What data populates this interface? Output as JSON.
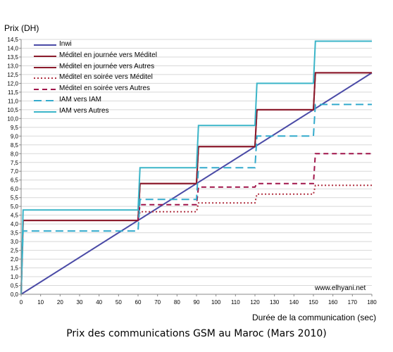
{
  "chart_data": {
    "type": "line",
    "title": "Prix des communications GSM au Maroc (Mars 2010)",
    "ylabel": "Prix (DH)",
    "xlabel": "Durée de la communication (sec)",
    "watermark": "www.elhyani.net",
    "xlim": [
      0,
      180
    ],
    "ylim": [
      0,
      14.5
    ],
    "x_ticks": [
      "0",
      "10",
      "20",
      "30",
      "40",
      "50",
      "60",
      "70",
      "80",
      "90",
      "100",
      "110",
      "120",
      "130",
      "140",
      "150",
      "160",
      "170",
      "180"
    ],
    "y_ticks": [
      "0,0",
      "0,5",
      "1,0",
      "1,5",
      "2,0",
      "2,5",
      "3,0",
      "3,5",
      "4,0",
      "4,5",
      "5,0",
      "5,5",
      "6,0",
      "6,5",
      "7,0",
      "7,5",
      "8,0",
      "8,5",
      "9,0",
      "9,5",
      "10,0",
      "10,5",
      "11,0",
      "11,5",
      "12,0",
      "12,5",
      "13,0",
      "13,5",
      "14,0",
      "14,5"
    ],
    "legend_position": "top-left",
    "series": [
      {
        "name": "Inwi",
        "color": "#4a4aa6",
        "dash": "solid",
        "points": [
          [
            0,
            0
          ],
          [
            180,
            12.6
          ]
        ]
      },
      {
        "name": "Méditel en journée vers Méditel",
        "color": "#8b1a2b",
        "dash": "solid",
        "points": [
          [
            0,
            0
          ],
          [
            1,
            4.2
          ],
          [
            60,
            4.2
          ],
          [
            61,
            6.3
          ],
          [
            90,
            6.3
          ],
          [
            91,
            8.4
          ],
          [
            120,
            8.4
          ],
          [
            121,
            10.5
          ],
          [
            150,
            10.5
          ],
          [
            151,
            12.6
          ],
          [
            180,
            12.6
          ]
        ]
      },
      {
        "name": "Méditel en journée vers Autres",
        "color": "#8b1a2b",
        "dash": "solid",
        "points": [
          [
            0,
            0
          ],
          [
            1,
            4.2
          ],
          [
            60,
            4.2
          ],
          [
            61,
            6.3
          ],
          [
            90,
            6.3
          ],
          [
            91,
            8.4
          ],
          [
            120,
            8.4
          ],
          [
            121,
            10.5
          ],
          [
            150,
            10.5
          ],
          [
            151,
            12.6
          ],
          [
            180,
            12.6
          ]
        ]
      },
      {
        "name": "Méditel en soirée vers Méditel",
        "color": "#b03040",
        "dash": "dotted",
        "points": [
          [
            60,
            4.2
          ],
          [
            61,
            4.7
          ],
          [
            90,
            4.7
          ],
          [
            91,
            5.2
          ],
          [
            120,
            5.2
          ],
          [
            121,
            5.7
          ],
          [
            150,
            5.7
          ],
          [
            151,
            6.2
          ],
          [
            180,
            6.2
          ]
        ]
      },
      {
        "name": "Méditel en soirée vers Autres",
        "color": "#a0154a",
        "dash": "dashed",
        "points": [
          [
            60,
            4.2
          ],
          [
            61,
            5.1
          ],
          [
            90,
            5.1
          ],
          [
            91,
            6.1
          ],
          [
            120,
            6.1
          ],
          [
            121,
            6.3
          ],
          [
            150,
            6.3
          ],
          [
            151,
            8.0
          ],
          [
            180,
            8.0
          ]
        ]
      },
      {
        "name": "IAM vers IAM",
        "color": "#33aacc",
        "dash": "longdash",
        "points": [
          [
            0,
            0
          ],
          [
            1,
            3.6
          ],
          [
            60,
            3.6
          ],
          [
            61,
            5.4
          ],
          [
            90,
            5.4
          ],
          [
            91,
            7.2
          ],
          [
            120,
            7.2
          ],
          [
            121,
            9.0
          ],
          [
            150,
            9.0
          ],
          [
            151,
            10.8
          ],
          [
            180,
            10.8
          ]
        ]
      },
      {
        "name": "IAM vers Autres",
        "color": "#3bb5c8",
        "dash": "solid",
        "points": [
          [
            0,
            0
          ],
          [
            1,
            4.8
          ],
          [
            60,
            4.8
          ],
          [
            61,
            7.2
          ],
          [
            90,
            7.2
          ],
          [
            91,
            9.6
          ],
          [
            120,
            9.6
          ],
          [
            121,
            12.0
          ],
          [
            150,
            12.0
          ],
          [
            151,
            14.4
          ],
          [
            180,
            14.4
          ]
        ]
      }
    ]
  }
}
